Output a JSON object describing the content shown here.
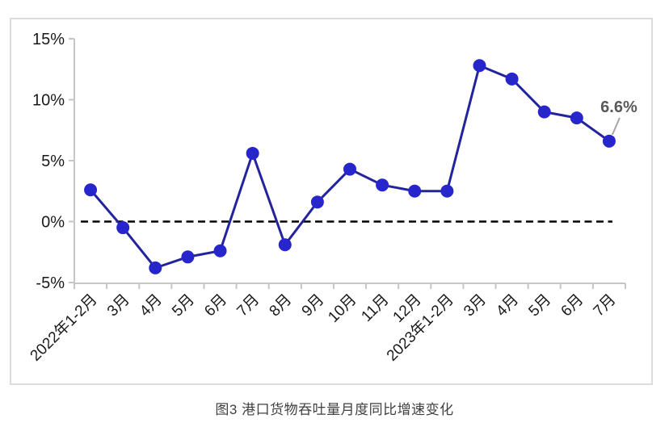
{
  "caption": "图3 港口货物吞吐量月度同比增速变化",
  "chart_data": {
    "type": "line",
    "categories": [
      "2022年1-2月",
      "3月",
      "4月",
      "5月",
      "6月",
      "7月",
      "8月",
      "9月",
      "10月",
      "11月",
      "12月",
      "2023年1-2月",
      "3月",
      "4月",
      "5月",
      "6月",
      "7月"
    ],
    "values": [
      2.6,
      -0.5,
      -3.8,
      -2.9,
      -2.4,
      5.6,
      -1.9,
      1.6,
      4.3,
      3.0,
      2.5,
      2.5,
      12.8,
      11.7,
      9.0,
      8.5,
      6.6
    ],
    "title": "图3 港口货物吞吐量月度同比增速变化",
    "xlabel": "",
    "ylabel": "",
    "ylim": [
      -5,
      15
    ],
    "ytick_labels": [
      "15%",
      "10%",
      "5%",
      "0%",
      "-5%"
    ],
    "grid": false,
    "legend": "none",
    "zero_line": "dashed-black",
    "annotation": {
      "label": "6.6%",
      "index": 16
    },
    "colors": {
      "marker": "#2626CC",
      "line": "#23239E",
      "axis": "#C6C6C6",
      "tick_text": "#1A1A1A",
      "zero_line": "#000000",
      "annotation_text": "#595959",
      "leader_line": "#A6A6A6",
      "panel_border": "#DCDCDC"
    }
  }
}
